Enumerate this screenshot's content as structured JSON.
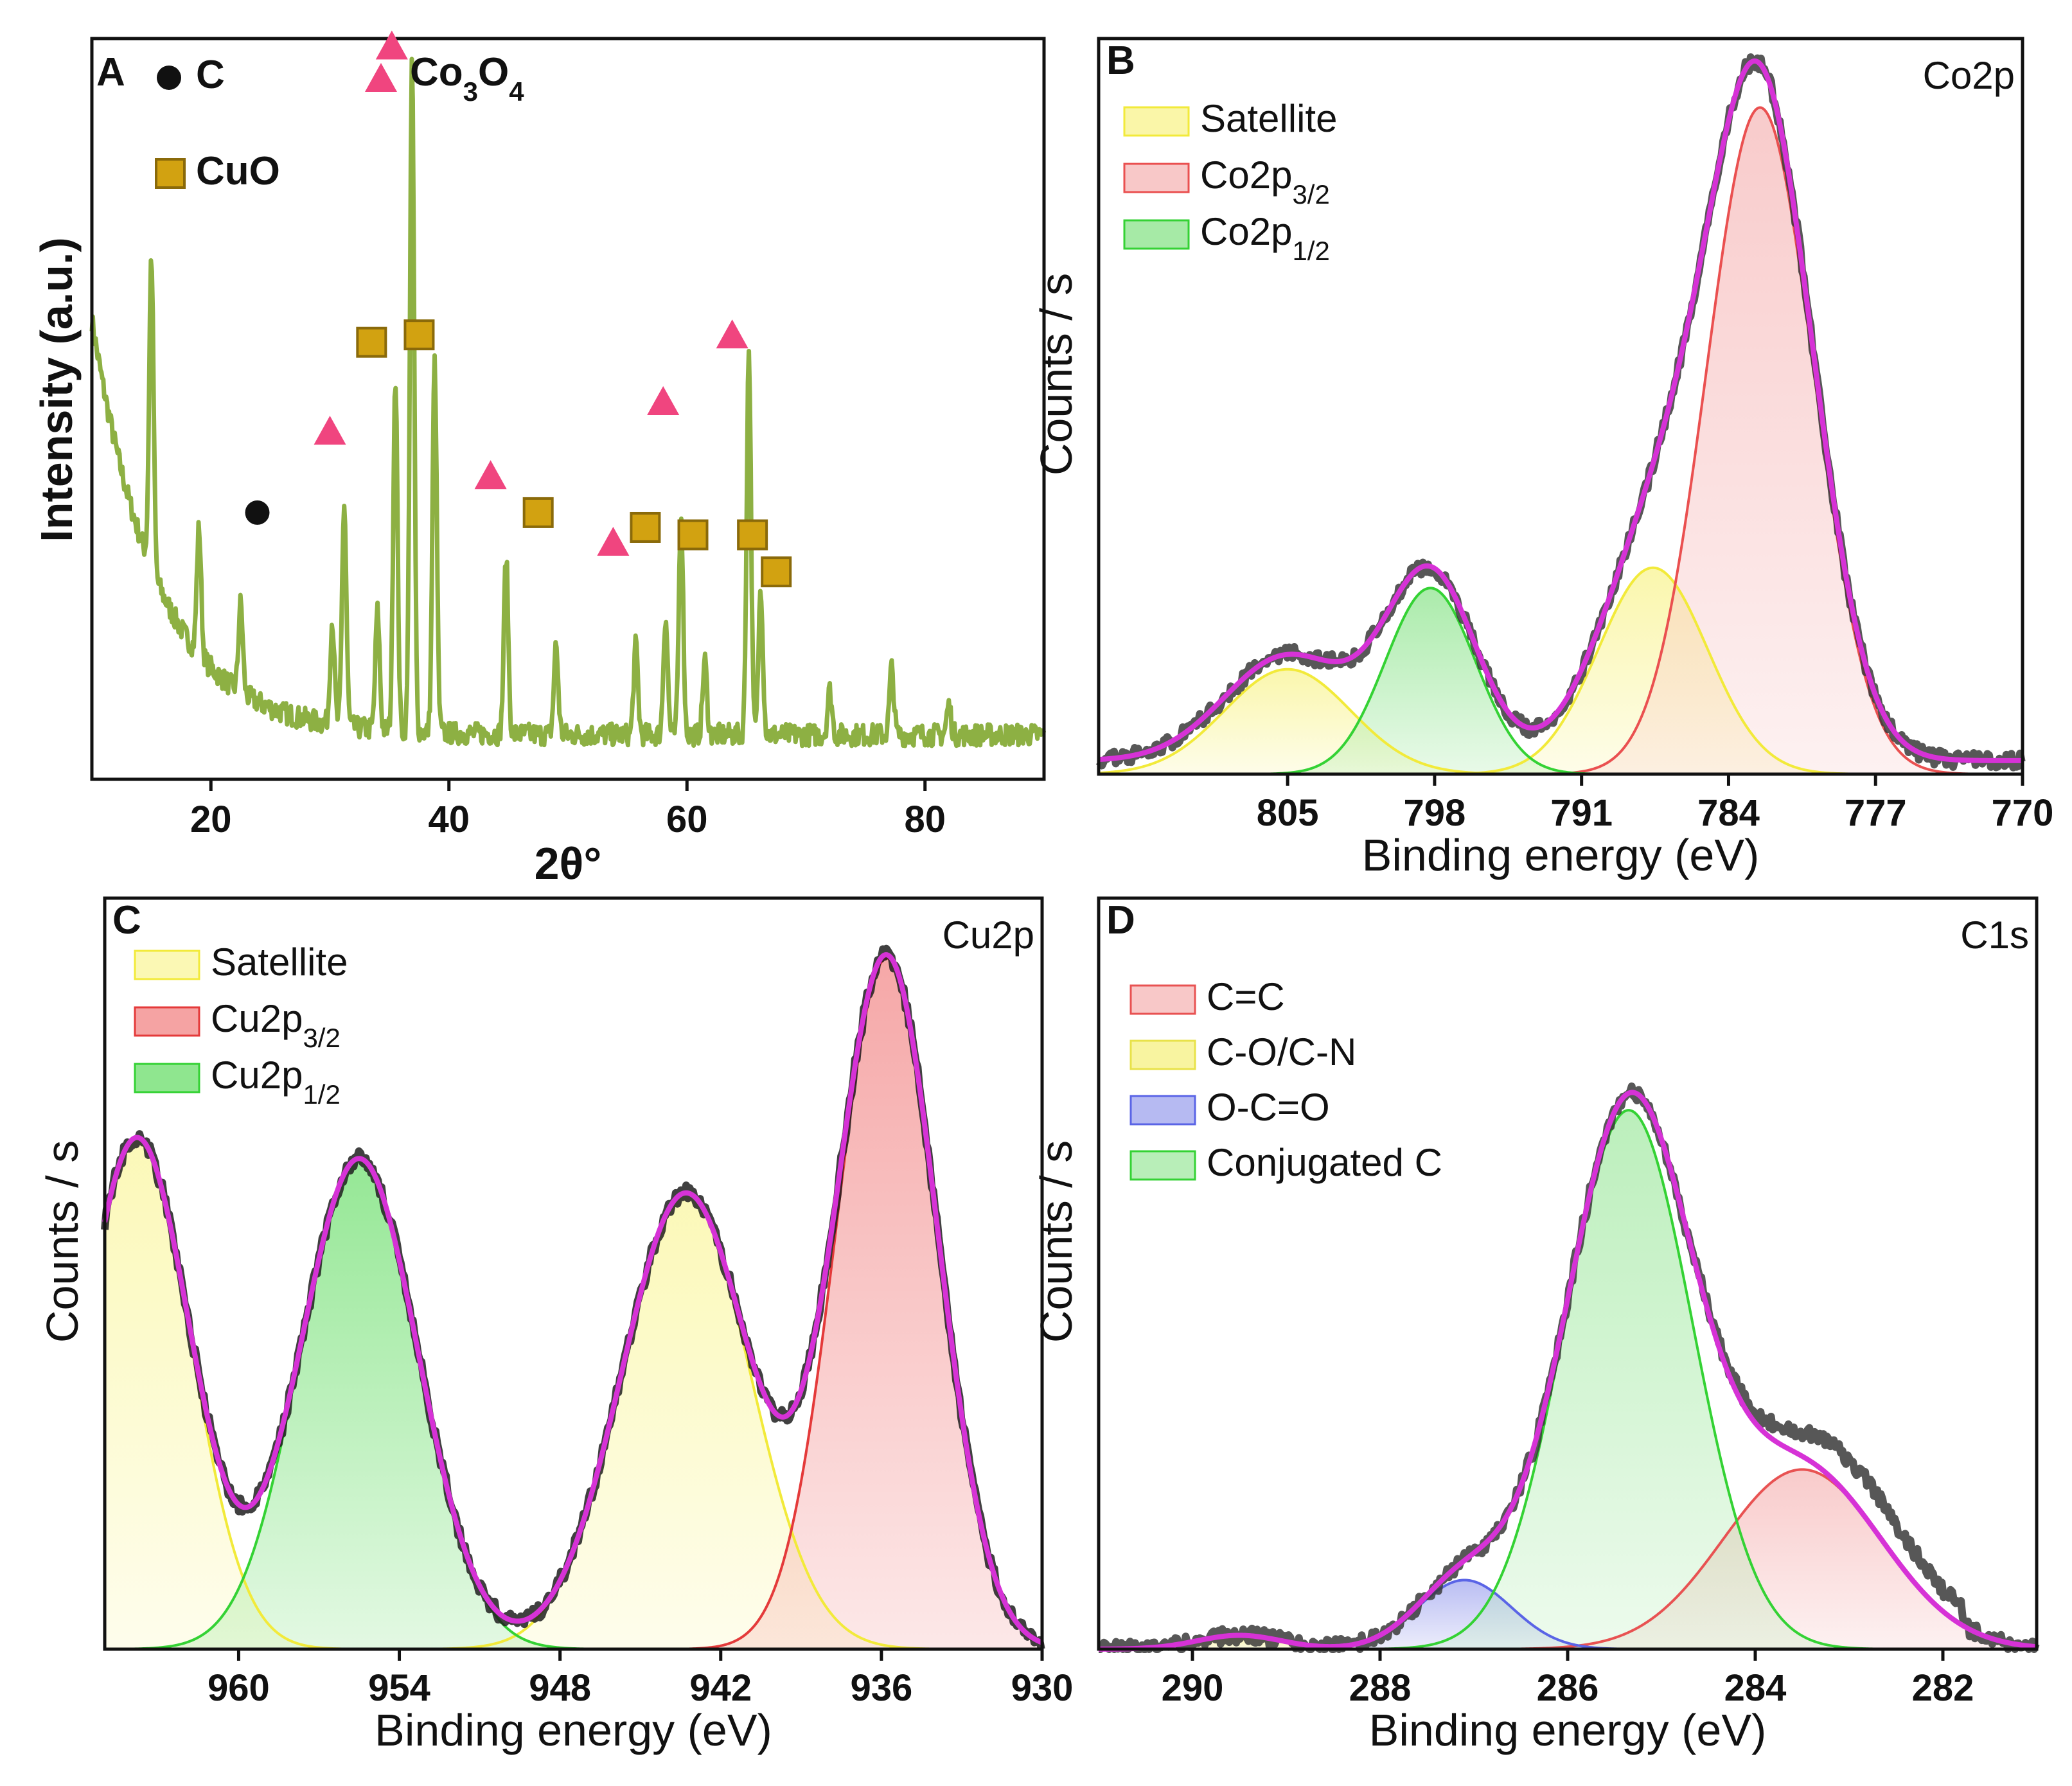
{
  "chart_data": [
    {
      "panel": "A",
      "type": "line",
      "xlabel": "2θ°",
      "ylabel": "Intensity (a.u.)",
      "xlim": [
        10,
        90
      ],
      "xticks": [
        20,
        40,
        60,
        80
      ],
      "series_color": "#8db043",
      "profile": {
        "baseline": {
          "start": 0.62,
          "decay": 5.5,
          "floor": 0.06
        },
        "peaks": [
          {
            "x": 15.0,
            "h": 0.42
          },
          {
            "x": 19.0,
            "h": 0.17
          },
          {
            "x": 22.5,
            "h": 0.12
          },
          {
            "x": 30.2,
            "h": 0.14
          },
          {
            "x": 31.2,
            "h": 0.3
          },
          {
            "x": 34.0,
            "h": 0.16
          },
          {
            "x": 35.5,
            "h": 0.48
          },
          {
            "x": 36.9,
            "h": 0.9
          },
          {
            "x": 38.8,
            "h": 0.5
          },
          {
            "x": 44.8,
            "h": 0.24
          },
          {
            "x": 49.0,
            "h": 0.12
          },
          {
            "x": 55.7,
            "h": 0.12
          },
          {
            "x": 58.2,
            "h": 0.16
          },
          {
            "x": 59.5,
            "h": 0.3
          },
          {
            "x": 61.5,
            "h": 0.1
          },
          {
            "x": 65.2,
            "h": 0.52
          },
          {
            "x": 66.2,
            "h": 0.2
          },
          {
            "x": 72.0,
            "h": 0.06
          },
          {
            "x": 77.2,
            "h": 0.09
          },
          {
            "x": 82.0,
            "h": 0.04
          }
        ]
      },
      "legend": [
        {
          "marker": "circle",
          "color": "#111111",
          "label": "C"
        },
        {
          "marker": "triangle",
          "color": "#f0457f",
          "label": "Co",
          "sub1": "3",
          "mid": "O",
          "sub2": "4"
        },
        {
          "marker": "square",
          "color": "#d2a211",
          "label": "CuO"
        }
      ],
      "annotations": [
        {
          "marker": "circle",
          "x": 23.9,
          "y": 0.36
        },
        {
          "marker": "triangle",
          "x": 35.2,
          "y": 0.99
        },
        {
          "marker": "triangle",
          "x": 30.0,
          "y": 0.47
        },
        {
          "marker": "triangle",
          "x": 43.5,
          "y": 0.41
        },
        {
          "marker": "triangle",
          "x": 58.0,
          "y": 0.51
        },
        {
          "marker": "triangle",
          "x": 63.8,
          "y": 0.6
        },
        {
          "marker": "triangle",
          "x": 53.8,
          "y": 0.32
        },
        {
          "marker": "square",
          "x": 33.5,
          "y": 0.59
        },
        {
          "marker": "square",
          "x": 37.5,
          "y": 0.6
        },
        {
          "marker": "square",
          "x": 47.5,
          "y": 0.36
        },
        {
          "marker": "square",
          "x": 56.5,
          "y": 0.34
        },
        {
          "marker": "square",
          "x": 60.5,
          "y": 0.33
        },
        {
          "marker": "square",
          "x": 65.5,
          "y": 0.33
        },
        {
          "marker": "square",
          "x": 67.5,
          "y": 0.28
        }
      ]
    },
    {
      "panel": "B",
      "type": "area",
      "title": "Co2p",
      "xlabel": "Binding energy (eV)",
      "ylabel": "Counts / s",
      "xlim": [
        814.0,
        770.0
      ],
      "ylim": [
        0,
        1.0
      ],
      "xticks": [
        805,
        798,
        791,
        784,
        777,
        770
      ],
      "xtick_labels": [
        "805",
        "798",
        "791",
        "784",
        "777",
        "770"
      ],
      "series": [
        {
          "name": "Satellite",
          "label": "Satellite",
          "color": "#f2ea3a",
          "fill": "#faf6a8",
          "components": [
            {
              "center": 805.0,
              "height": 0.155,
              "sigma": 3.0
            },
            {
              "center": 787.6,
              "height": 0.305,
              "sigma": 2.6
            }
          ]
        },
        {
          "name": "Co2p3/2",
          "label": "Co2p",
          "sub": "3/2",
          "color": "#ea5050",
          "fill": "#f8c8c8",
          "components": [
            {
              "center": 782.5,
              "height": 0.985,
              "sigma": 2.55
            }
          ]
        },
        {
          "name": "Co2p1/2",
          "label": "Co2p",
          "sub": "1/2",
          "color": "#34d234",
          "fill": "#a6eaa6",
          "components": [
            {
              "center": 798.2,
              "height": 0.275,
              "sigma": 2.15
            }
          ]
        }
      ],
      "envelope_color": "#d632d6",
      "raw_color": "#3a3a3a"
    },
    {
      "panel": "C",
      "type": "area",
      "title": "Cu2p",
      "xlabel": "Binding energy (eV)",
      "ylabel": "Counts / s",
      "xlim": [
        965.0,
        930.0
      ],
      "ylim": [
        0,
        1.0
      ],
      "xticks": [
        960,
        954,
        948,
        942,
        936,
        930
      ],
      "xtick_labels": [
        "960",
        "954",
        "948",
        "942",
        "936",
        "930"
      ],
      "series": [
        {
          "name": "Satellite",
          "label": "Satellite",
          "color": "#f2ea3a",
          "fill": "#fbf8b4",
          "components": [
            {
              "center": 963.8,
              "height": 0.74,
              "sigma": 2.0
            },
            {
              "center": 943.3,
              "height": 0.66,
              "sigma": 2.4
            }
          ]
        },
        {
          "name": "Cu2p3/2",
          "label": "Cu2p",
          "sub": "3/2",
          "color": "#e43a3a",
          "fill": "#f5a3a3",
          "components": [
            {
              "center": 935.8,
              "height": 1.0,
              "sigma": 1.9
            }
          ]
        },
        {
          "name": "Cu2p1/2",
          "label": "Cu2p",
          "sub": "1/2",
          "color": "#34d234",
          "fill": "#8fe68f",
          "components": [
            {
              "center": 955.5,
              "height": 0.71,
              "sigma": 2.2
            }
          ]
        }
      ],
      "envelope_color": "#d632d6",
      "raw_color": "#1f1f1f"
    },
    {
      "panel": "D",
      "type": "area",
      "title": "C1s",
      "xlabel": "Binding energy (eV)",
      "ylabel": "Counts / s",
      "xlim": [
        291.0,
        281.0
      ],
      "ylim": [
        0,
        1.0
      ],
      "xticks": [
        290,
        288,
        286,
        284,
        282
      ],
      "xtick_labels": [
        "290",
        "288",
        "286",
        "284",
        "282"
      ],
      "series": [
        {
          "name": "C=C",
          "label": "C=C",
          "color": "#e85252",
          "fill": "#f8c8c8",
          "components": [
            {
              "center": 283.5,
              "height": 0.26,
              "sigma": 0.85
            }
          ]
        },
        {
          "name": "C-O/C-N",
          "label": "C-O/C-N",
          "color": "#e8e24a",
          "fill": "#f8f4a0",
          "components": [
            {
              "center": 289.5,
              "height": 0.02,
              "sigma": 0.45
            }
          ]
        },
        {
          "name": "O-C=O",
          "label": "O-C=O",
          "color": "#5a64e6",
          "fill": "#b6baf2",
          "components": [
            {
              "center": 287.1,
              "height": 0.1,
              "sigma": 0.5
            }
          ]
        },
        {
          "name": "Conjugated C",
          "label": "Conjugated C",
          "color": "#34d234",
          "fill": "#b8eeb8",
          "components": [
            {
              "center": 285.35,
              "height": 0.78,
              "sigma": 0.68
            }
          ]
        }
      ],
      "envelope_color": "#d632d6",
      "raw_color": "#3a3a3a"
    }
  ]
}
